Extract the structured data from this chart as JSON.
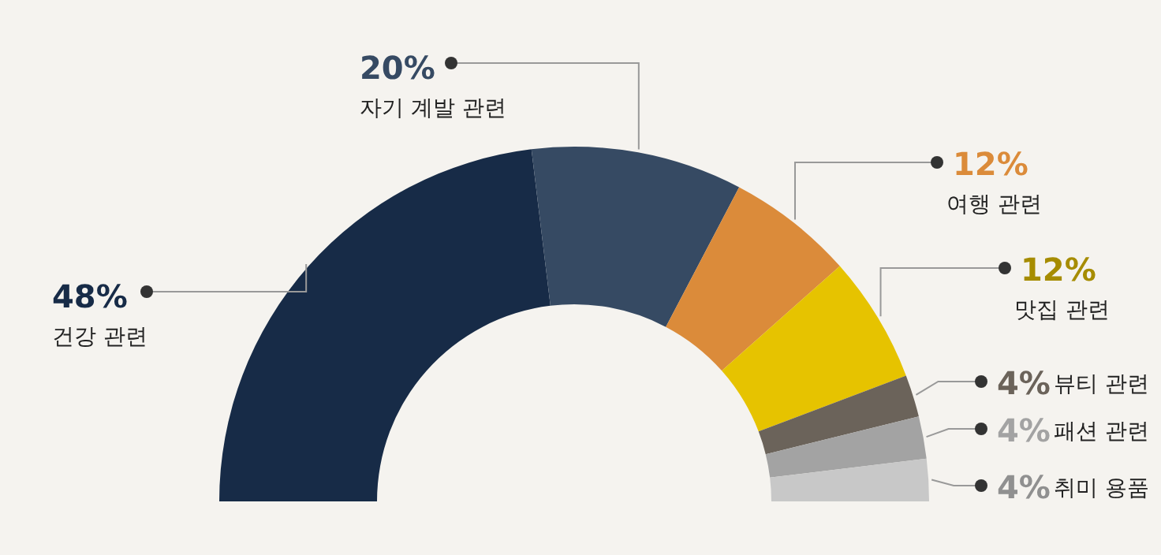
{
  "chart_data": {
    "type": "donut",
    "categories": [
      "건강 관련",
      "자기 계발 관련",
      "여행 관련",
      "맛집 관련",
      "뷰티 관련",
      "패션 관련",
      "취미 용품"
    ],
    "values": [
      48,
      20,
      12,
      12,
      4,
      4,
      4
    ],
    "value_labels": [
      "48%",
      "20%",
      "12%",
      "12%",
      "4%",
      "4%",
      "4%"
    ],
    "colors": [
      "#172b47",
      "#364a63",
      "#db8b3a",
      "#e6c300",
      "#6b635a",
      "#a3a3a3",
      "#c8c8c8"
    ]
  }
}
